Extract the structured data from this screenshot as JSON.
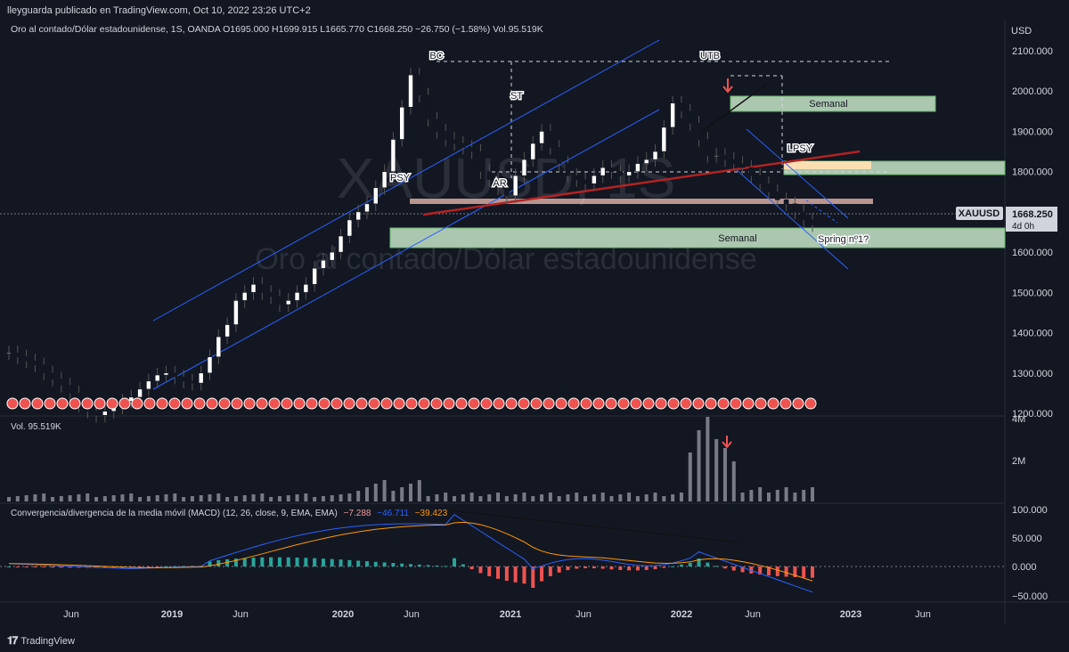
{
  "header": {
    "publisher": "lleyguarda publicado en TradingView.com, Oct 10, 2022 23:26 UTC+2"
  },
  "symbol_line": "Oro al contado/Dólar estadounidense, 1S, OANDA  O1695.000  H1699.915  L1665.770  C1668.250  −26.750 (−1.58%)  Vol.95.519K",
  "price_axis": {
    "currency": "USD",
    "labels": [
      "2100.000",
      "2000.000",
      "1900.000",
      "1800.000",
      "1700.000",
      "1600.000",
      "1500.000",
      "1400.000",
      "1300.000",
      "1200.000"
    ]
  },
  "price_tag": {
    "symbol": "XAUUSD",
    "price": "1668.250",
    "countdown": "4d 0h"
  },
  "watermark": {
    "ticker": "XAUUSD, 1S",
    "name": "Oro al contado/Dólar estadounidense"
  },
  "volume_pane": {
    "label": "Vol.  95.519K",
    "axis": [
      "4M",
      "2M"
    ]
  },
  "macd_pane": {
    "label": "Convergencia/divergencia de la media móvil (MACD) (12, 26, close, 9, EMA, EMA)",
    "v1": "−7.288",
    "v2": "−46.711",
    "v3": "−39.423",
    "axis": [
      "100.000",
      "50.000",
      "0.000",
      "−50.000"
    ]
  },
  "time_axis": [
    "Jun",
    "2019",
    "Jun",
    "2020",
    "Jun",
    "2021",
    "Jun",
    "2022",
    "Jun",
    "2023",
    "Jun"
  ],
  "annotations": {
    "BC": "BC",
    "ST": "ST",
    "AR": "AR",
    "PSY": "PSY",
    "UTB": "UTB",
    "LPSY": "LPSY",
    "semanal_top": "Semanal",
    "semanal_bottom": "Semanal",
    "spring": "Spring nº1?"
  },
  "footer": {
    "brand": "TradingView"
  },
  "colors": {
    "up": "#26a69a",
    "down": "#ef5350",
    "macd": "#2962ff",
    "signal": "#ff9800",
    "channel": "#2962ff",
    "trend": "#b22222"
  },
  "chart_data": {
    "type": "candlestick",
    "title": "Oro al contado/Dólar estadounidense (XAUUSD) 1S",
    "ylim": [
      1150,
      2130
    ],
    "weekly_closes_approx": [
      1350,
      1340,
      1330,
      1320,
      1300,
      1285,
      1270,
      1250,
      1220,
      1205,
      1195,
      1205,
      1215,
      1230,
      1240,
      1260,
      1280,
      1295,
      1300,
      1290,
      1280,
      1275,
      1300,
      1340,
      1390,
      1420,
      1480,
      1500,
      1520,
      1500,
      1490,
      1470,
      1480,
      1500,
      1520,
      1560,
      1580,
      1600,
      1640,
      1680,
      1700,
      1720,
      1760,
      1800,
      1880,
      1960,
      2040,
      1990,
      1930,
      1900,
      1880,
      1870,
      1860,
      1850,
      1800,
      1780,
      1760,
      1740,
      1790,
      1830,
      1870,
      1900,
      1860,
      1820,
      1790,
      1780,
      1770,
      1790,
      1810,
      1800,
      1790,
      1800,
      1820,
      1830,
      1850,
      1910,
      1970,
      1950,
      1920,
      1880,
      1840,
      1840,
      1830,
      1820,
      1810,
      1790,
      1770,
      1750,
      1730,
      1720,
      1700,
      1680,
      1668
    ],
    "volume_max": "4M",
    "macd": {
      "macd": -46.711,
      "signal": -39.423,
      "histogram": -7.288,
      "ylim": [
        -60,
        110
      ]
    }
  }
}
